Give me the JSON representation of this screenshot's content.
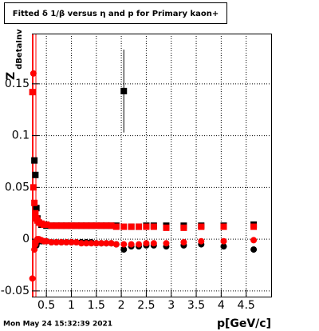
{
  "chart_data": {
    "type": "scatter",
    "title": "Fitted δ 1/β versus η and p for Primary kaon+",
    "y_label": "Z",
    "y_label_sub": "dBetaInv",
    "x_label": "p[GeV/c]",
    "timestamp": "Mon May 24 15:32:39 2021",
    "xlim": [
      0.21,
      5.0
    ],
    "ylim": [
      -0.0555,
      0.1985
    ],
    "xticks": [
      0.5,
      1,
      1.5,
      2,
      2.5,
      3,
      3.5,
      4,
      4.5
    ],
    "yticks": [
      -0.05,
      0,
      0.05,
      0.1,
      0.15
    ],
    "grid": true,
    "x": [
      0.22,
      0.24,
      0.26,
      0.28,
      0.3,
      0.32,
      0.35,
      0.4,
      0.45,
      0.5,
      0.6,
      0.7,
      0.8,
      0.9,
      1.0,
      1.1,
      1.2,
      1.3,
      1.4,
      1.5,
      1.6,
      1.7,
      1.8,
      1.9,
      2.05,
      2.2,
      2.35,
      2.5,
      2.65,
      2.9,
      3.25,
      3.6,
      4.05,
      4.65
    ],
    "series": [
      {
        "marker": "square",
        "color": "#000000",
        "values": [
          null,
          null,
          0.076,
          0.062,
          0.03,
          0.02,
          0.016,
          0.014,
          0.014,
          0.013,
          0.013,
          0.013,
          0.013,
          0.013,
          0.013,
          0.013,
          0.013,
          0.013,
          0.013,
          0.013,
          0.013,
          0.013,
          0.013,
          0.013,
          0.143,
          0.012,
          0.012,
          0.013,
          0.013,
          0.013,
          0.013,
          0.013,
          0.013,
          0.014
        ],
        "errors": [
          null,
          null,
          null,
          null,
          null,
          null,
          null,
          null,
          null,
          null,
          null,
          null,
          null,
          null,
          null,
          null,
          null,
          null,
          null,
          null,
          null,
          null,
          null,
          null,
          0.04,
          null,
          null,
          null,
          null,
          null,
          null,
          null,
          null,
          null
        ]
      },
      {
        "marker": "circle",
        "color": "#000000",
        "values": [
          null,
          null,
          null,
          null,
          -0.006,
          -0.003,
          -0.002,
          -0.002,
          -0.002,
          -0.002,
          -0.003,
          -0.003,
          -0.003,
          -0.003,
          -0.003,
          -0.003,
          -0.003,
          -0.003,
          -0.003,
          -0.004,
          -0.004,
          -0.004,
          -0.004,
          -0.005,
          -0.01,
          -0.007,
          -0.007,
          -0.006,
          -0.006,
          -0.007,
          -0.006,
          -0.005,
          -0.007,
          -0.01
        ]
      },
      {
        "marker": "square",
        "color": "#ff0000",
        "values": [
          0.142,
          0.05,
          0.035,
          0.025,
          0.02,
          0.018,
          0.016,
          0.015,
          0.014,
          0.014,
          0.013,
          0.013,
          0.013,
          0.013,
          0.013,
          0.013,
          0.013,
          0.013,
          0.013,
          0.013,
          0.013,
          0.013,
          0.013,
          0.012,
          0.012,
          0.012,
          0.012,
          0.012,
          0.012,
          0.011,
          0.011,
          0.012,
          0.012,
          0.012
        ]
      },
      {
        "marker": "circle",
        "color": "#ff0000",
        "values": [
          -0.038,
          0.16,
          -0.01,
          -0.005,
          -0.002,
          0.0,
          0.0,
          -0.001,
          -0.002,
          -0.002,
          -0.003,
          -0.003,
          -0.003,
          -0.003,
          -0.003,
          -0.003,
          -0.004,
          -0.004,
          -0.004,
          -0.004,
          -0.004,
          -0.004,
          -0.004,
          -0.005,
          -0.005,
          -0.005,
          -0.005,
          -0.004,
          -0.004,
          -0.004,
          -0.003,
          -0.002,
          -0.002,
          -0.001
        ]
      }
    ]
  }
}
